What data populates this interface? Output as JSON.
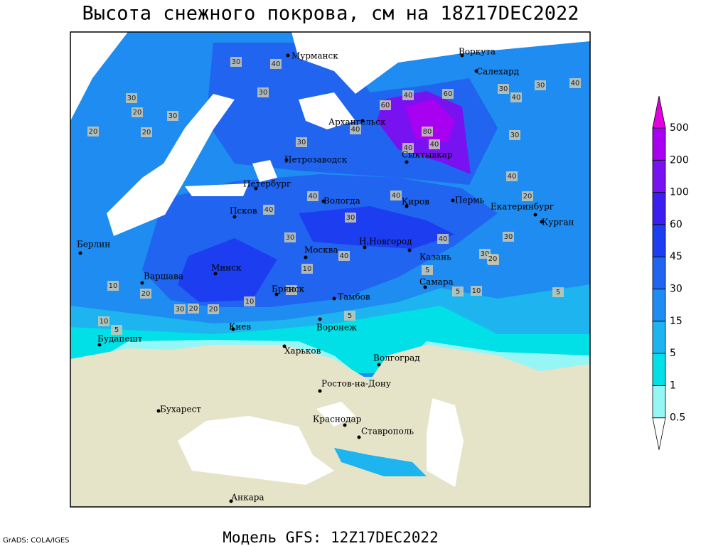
{
  "title": "Высота снежного покрова, см на 18Z17DEC2022",
  "footer": "Модель GFS: 12Z17DEC2022",
  "credit": "GrADS: COLA/IGES",
  "legend": {
    "levels": [
      0.5,
      1,
      5,
      15,
      30,
      45,
      60,
      100,
      200,
      500
    ],
    "colors": [
      "#ffffff",
      "#96f5f5",
      "#00e0e6",
      "#1eb4f0",
      "#1e8cf0",
      "#2064f0",
      "#1c3ef0",
      "#3c1ef0",
      "#7812f0",
      "#a800f0",
      "#e000e0"
    ]
  },
  "cities": [
    "Мурманск",
    "Воркута",
    "Салехард",
    "Архангельск",
    "Сыктывкар",
    "Петрозаводск",
    "Петербург",
    "Вологда",
    "Киров",
    "Пермь",
    "Екатеринбург",
    "Курган",
    "Псков",
    "Москва",
    "Н.Новгород",
    "Казань",
    "Берлин",
    "Варшава",
    "Минск",
    "Брянск",
    "Тамбов",
    "Самара",
    "Киев",
    "Воронеж",
    "Будапешт",
    "Харьков",
    "Волгоград",
    "Ростов-на-Дону",
    "Бухарест",
    "Краснодар",
    "Ставрополь",
    "Анкара"
  ],
  "contour_labels": [
    30,
    40,
    30,
    30,
    20,
    30,
    20,
    20,
    30,
    40,
    60,
    60,
    40,
    80,
    40,
    40,
    30,
    40,
    40,
    30,
    30,
    40,
    40,
    40,
    30,
    40,
    30,
    20,
    30,
    20,
    10,
    20,
    30,
    20,
    10,
    10,
    5,
    5,
    10,
    5,
    20,
    5,
    10,
    5,
    10,
    30,
    20,
    40,
    40
  ]
}
